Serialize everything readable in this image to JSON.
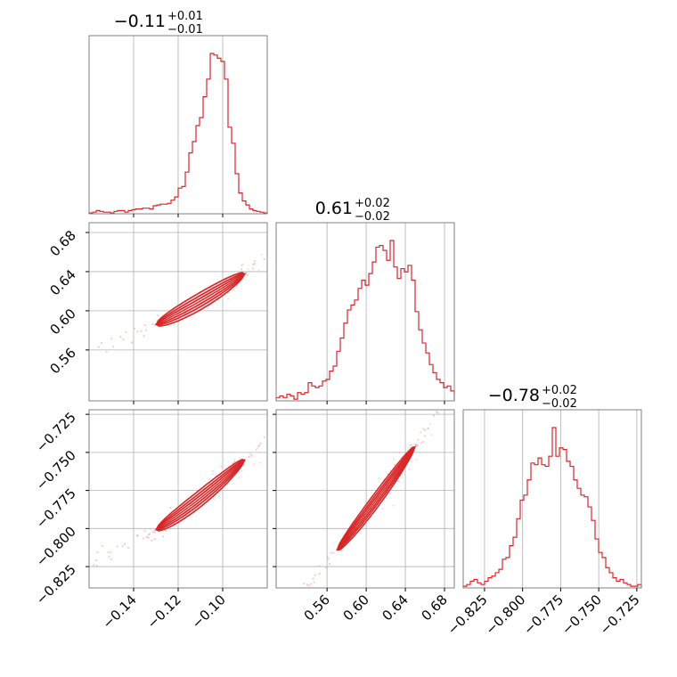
{
  "chart_data": {
    "type": "corner",
    "color": "#d62728",
    "fill_color": "#f5c6c6",
    "grid": true,
    "titles": [
      {
        "median": "−0.11",
        "plus": "+0.01",
        "minus": "−0.01"
      },
      {
        "median": "0.61",
        "plus": "+0.02",
        "minus": "−0.02"
      },
      {
        "median": "−0.78",
        "plus": "+0.02",
        "minus": "−0.02"
      }
    ],
    "ranges": [
      [
        -0.16,
        -0.08
      ],
      [
        0.508,
        0.69
      ],
      [
        -0.839,
        -0.722
      ]
    ],
    "ticks": [
      {
        "values": [
          -0.14,
          -0.12,
          -0.1
        ],
        "labels": [
          "−0.14",
          "−0.12",
          "−0.10"
        ]
      },
      {
        "values": [
          0.56,
          0.6,
          0.64,
          0.68
        ],
        "labels": [
          "0.56",
          "0.60",
          "0.64",
          "0.68"
        ]
      },
      {
        "values": [
          -0.825,
          -0.8,
          -0.775,
          -0.75,
          -0.725
        ],
        "labels": [
          "−0.825",
          "−0.800",
          "−0.775",
          "−0.750",
          "−0.725"
        ]
      }
    ],
    "histograms": [
      {
        "counts": [
          0.5,
          1,
          2,
          1.5,
          1,
          1,
          0.5,
          1.5,
          2,
          2,
          1,
          2,
          2.5,
          3,
          3,
          3.5,
          3.5,
          3,
          5,
          5.5,
          6,
          6,
          6.5,
          8.5,
          10.5,
          16,
          17,
          26,
          38,
          45,
          55,
          60,
          73,
          84,
          100,
          99,
          97,
          95,
          84,
          54,
          44,
          25,
          13,
          8,
          5.5,
          3,
          2,
          1.5,
          1,
          0.5
        ]
      },
      {
        "counts": [
          2,
          3,
          2,
          4,
          3,
          1,
          5,
          4,
          5,
          11,
          9,
          8,
          9,
          12,
          13,
          18,
          21,
          30,
          38,
          47,
          55,
          58,
          61,
          68,
          73,
          70,
          77,
          84,
          93,
          94,
          91,
          85,
          97,
          81,
          74,
          80,
          78,
          82,
          73,
          54,
          43,
          35,
          29,
          22,
          17,
          13,
          11,
          8,
          9,
          6
        ]
      },
      {
        "counts": [
          1,
          2,
          4,
          5,
          3,
          2,
          4,
          6,
          7,
          9,
          11,
          17,
          18,
          25,
          30,
          41,
          52,
          55,
          64,
          74,
          73,
          77,
          73,
          72,
          78,
          95,
          78,
          83,
          82,
          75,
          72,
          64,
          59,
          55,
          54,
          48,
          40,
          29,
          21,
          18,
          12,
          9,
          6,
          4,
          5,
          3,
          2,
          1,
          1,
          2
        ]
      }
    ],
    "pairs": [
      {
        "x": 0,
        "y": 1,
        "slope": 1.3,
        "intercept": 0.753,
        "curvature": 5.0,
        "x_center": -0.11,
        "x_sigma": 0.009
      },
      {
        "x": 0,
        "y": 2,
        "slope": 1.15,
        "intercept": -0.6535,
        "curvature": 5.5,
        "x_center": -0.11,
        "x_sigma": 0.009
      },
      {
        "x": 1,
        "y": 2,
        "slope": 0.85,
        "intercept": -1.3,
        "curvature": 0.8,
        "x_center": 0.61,
        "x_sigma": 0.018
      }
    ]
  }
}
